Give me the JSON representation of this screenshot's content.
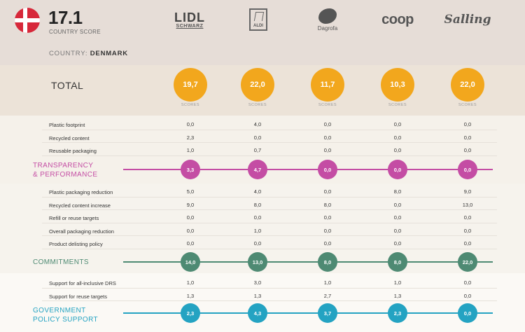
{
  "header": {
    "score": "17.1",
    "score_label": "COUNTRY SCORE",
    "country_prefix": "COUNTRY: ",
    "country_name": "DENMARK",
    "flag_icon": "denmark-flag-icon"
  },
  "retailers": [
    {
      "name": "Lidl",
      "logo_text": "LIDL",
      "sub_text": "SCHWARZ"
    },
    {
      "name": "Aldi",
      "logo_text": "ALDI"
    },
    {
      "name": "Dagrofa",
      "logo_text": "Dagrofa"
    },
    {
      "name": "Coop",
      "logo_text": "coop"
    },
    {
      "name": "Salling",
      "logo_text": "Salling"
    }
  ],
  "total": {
    "label": "TOTAL",
    "values": [
      "19,7",
      "22,0",
      "11,7",
      "10,3",
      "22,0"
    ],
    "scores_label": "SCORES"
  },
  "transparency_rows": [
    {
      "label": "Plastic footprint",
      "values": [
        "0,0",
        "4,0",
        "0,0",
        "0,0",
        "0,0"
      ]
    },
    {
      "label": "Recycled content",
      "values": [
        "2,3",
        "0,0",
        "0,0",
        "0,0",
        "0,0"
      ]
    },
    {
      "label": "Reusable packaging",
      "values": [
        "1,0",
        "0,7",
        "0,0",
        "0,0",
        "0,0"
      ]
    }
  ],
  "transparency": {
    "title_line1": "TRANSPARENCY",
    "title_line2": "& PERFORMANCE",
    "values": [
      "3,3",
      "4,7",
      "0,0",
      "0,0",
      "0,0"
    ],
    "color": "#c44da4"
  },
  "commitment_rows": [
    {
      "label": "Plastic packaging reduction",
      "values": [
        "5,0",
        "4,0",
        "0,0",
        "8,0",
        "9,0"
      ]
    },
    {
      "label": "Recycled content increase",
      "values": [
        "9,0",
        "8,0",
        "8,0",
        "0,0",
        "13,0"
      ]
    },
    {
      "label": "Refill or reuse targets",
      "values": [
        "0,0",
        "0,0",
        "0,0",
        "0,0",
        "0,0"
      ]
    },
    {
      "label": "Overall packaging reduction",
      "values": [
        "0,0",
        "1,0",
        "0,0",
        "0,0",
        "0,0"
      ]
    },
    {
      "label": "Product delisting policy",
      "values": [
        "0,0",
        "0,0",
        "0,0",
        "0,0",
        "0,0"
      ]
    }
  ],
  "commitments": {
    "title": "COMMITMENTS",
    "values": [
      "14,0",
      "13,0",
      "8,0",
      "8,0",
      "22,0"
    ],
    "color": "#4e8a73"
  },
  "policy_rows": [
    {
      "label": "Support for all-inclusive DRS",
      "values": [
        "1,0",
        "3,0",
        "1,0",
        "1,0",
        "0,0"
      ]
    },
    {
      "label": "Support for reuse targets",
      "values": [
        "1,3",
        "1,3",
        "2,7",
        "1,3",
        "0,0"
      ]
    }
  ],
  "policy": {
    "title_line1": "GOVERNMENT",
    "title_line2": "POLICY SUPPORT",
    "values": [
      "2,3",
      "4,3",
      "3,7",
      "2,3",
      "0,0"
    ],
    "color": "#24a3c2"
  },
  "colors": {
    "total_circle": "#f2a71d",
    "header_bg": "#e6ddd7"
  }
}
